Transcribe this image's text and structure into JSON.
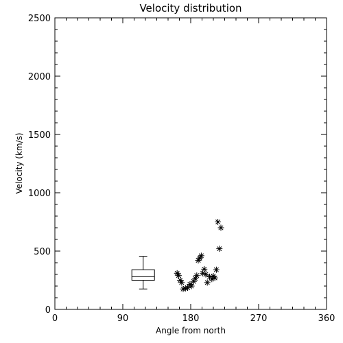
{
  "chart_data": {
    "type": "scatter",
    "title": "Velocity distribution",
    "xlabel": "Angle from north",
    "ylabel": "Velocity (km/s)",
    "xlim": [
      0,
      360
    ],
    "ylim": [
      0,
      2500
    ],
    "xticks": [
      "0",
      "90",
      "180",
      "270",
      "360"
    ],
    "yticks": [
      "0",
      "500",
      "1000",
      "1500",
      "2000",
      "2500"
    ],
    "grid": false,
    "marker": "asterisk",
    "points": [
      {
        "x": 162,
        "y": 310
      },
      {
        "x": 164,
        "y": 290
      },
      {
        "x": 166,
        "y": 250
      },
      {
        "x": 168,
        "y": 230
      },
      {
        "x": 170,
        "y": 175
      },
      {
        "x": 173,
        "y": 180
      },
      {
        "x": 176,
        "y": 185
      },
      {
        "x": 179,
        "y": 215
      },
      {
        "x": 181,
        "y": 200
      },
      {
        "x": 184,
        "y": 240
      },
      {
        "x": 186,
        "y": 265
      },
      {
        "x": 188,
        "y": 290
      },
      {
        "x": 190,
        "y": 420
      },
      {
        "x": 192,
        "y": 440
      },
      {
        "x": 194,
        "y": 460
      },
      {
        "x": 196,
        "y": 310
      },
      {
        "x": 198,
        "y": 345
      },
      {
        "x": 200,
        "y": 300
      },
      {
        "x": 202,
        "y": 230
      },
      {
        "x": 205,
        "y": 280
      },
      {
        "x": 208,
        "y": 260
      },
      {
        "x": 210,
        "y": 285
      },
      {
        "x": 212,
        "y": 270
      },
      {
        "x": 214,
        "y": 340
      },
      {
        "x": 216,
        "y": 750
      },
      {
        "x": 218,
        "y": 520
      },
      {
        "x": 220,
        "y": 700
      }
    ],
    "boxplot": {
      "x_min": 102,
      "x_max": 132,
      "x_center": 117,
      "whisker_low": 175,
      "q1": 250,
      "median": 280,
      "q3": 340,
      "whisker_high": 455
    }
  }
}
